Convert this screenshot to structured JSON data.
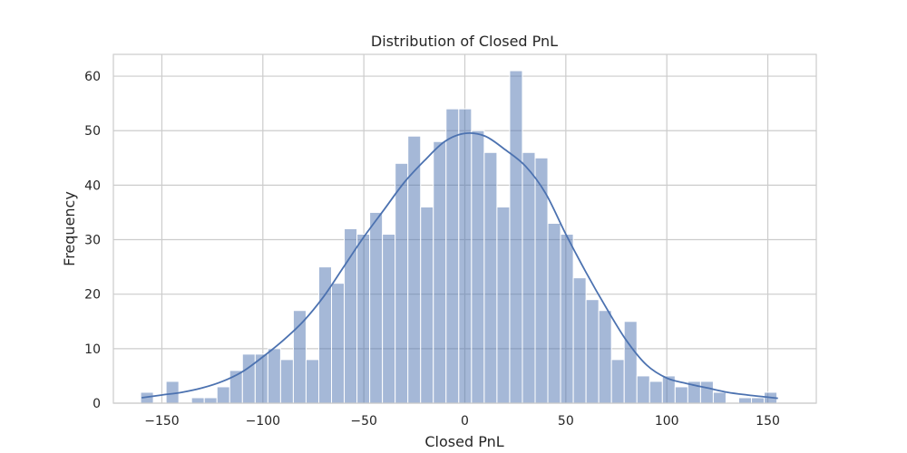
{
  "chart_data": {
    "type": "bar",
    "title": "Distribution of Closed PnL",
    "xlabel": "Closed PnL",
    "ylabel": "Frequency",
    "xlim": [
      -174,
      174
    ],
    "ylim": [
      0,
      64
    ],
    "xticks": [
      -150,
      -100,
      -50,
      0,
      50,
      100,
      150
    ],
    "yticks": [
      0,
      10,
      20,
      30,
      40,
      50,
      60
    ],
    "grid": true,
    "legend": "none",
    "colors": {
      "bar": "#4c72b0",
      "kde": "#4c72b0",
      "grid": "#cccccc",
      "frame": "#cccccc"
    },
    "bin_edges": [
      -160.5,
      -154.2,
      -147.9,
      -141.6,
      -135.3,
      -129.0,
      -122.7,
      -116.4,
      -110.1,
      -103.8,
      -97.5,
      -91.2,
      -84.9,
      -78.6,
      -72.3,
      -66.0,
      -59.7,
      -53.4,
      -47.1,
      -40.8,
      -34.5,
      -28.2,
      -21.9,
      -15.6,
      -9.3,
      -3.0,
      3.3,
      9.6,
      15.9,
      22.2,
      28.5,
      34.8,
      41.1,
      47.4,
      53.7,
      60.0,
      66.3,
      72.6,
      78.9,
      85.2,
      91.5,
      97.8,
      104.1,
      110.4,
      116.7,
      123.0,
      129.3,
      135.6,
      141.9,
      148.2,
      154.5,
      160.8
    ],
    "counts": [
      2,
      0,
      4,
      0,
      1,
      1,
      3,
      6,
      9,
      9,
      10,
      8,
      17,
      8,
      25,
      22,
      32,
      31,
      35,
      31,
      44,
      49,
      36,
      48,
      54,
      54,
      50,
      46,
      36,
      61,
      46,
      45,
      33,
      31,
      23,
      19,
      17,
      8,
      15,
      5,
      4,
      5,
      3,
      4,
      4,
      2,
      0,
      1,
      1,
      2,
      0
    ],
    "kde": {
      "x": [
        -160,
        -150,
        -140,
        -130,
        -120,
        -110,
        -100,
        -90,
        -80,
        -70,
        -60,
        -50,
        -40,
        -30,
        -20,
        -10,
        0,
        10,
        20,
        30,
        40,
        50,
        60,
        70,
        80,
        90,
        100,
        110,
        120,
        130,
        140,
        150,
        155
      ],
      "y": [
        1.0,
        1.5,
        2.0,
        2.8,
        4.0,
        5.8,
        8.5,
        11.5,
        15.0,
        19.5,
        25.0,
        30.5,
        35.5,
        40.5,
        44.5,
        48.0,
        49.5,
        49.0,
        46.5,
        43.5,
        38.5,
        31.0,
        24.0,
        17.5,
        11.5,
        7.0,
        4.6,
        3.6,
        2.8,
        2.0,
        1.5,
        1.1,
        0.9
      ]
    }
  }
}
